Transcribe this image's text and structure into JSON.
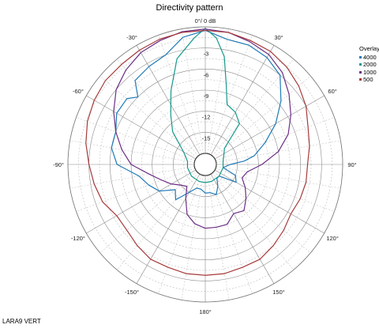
{
  "chart_data": {
    "type": "polar-line",
    "title": "Directivity pattern",
    "top_label": "0°/ 0 dB",
    "angle_ticks": [
      {
        "deg": -30,
        "label": "-30°"
      },
      {
        "deg": 30,
        "label": "30°"
      },
      {
        "deg": -60,
        "label": "-60°"
      },
      {
        "deg": 60,
        "label": "60°"
      },
      {
        "deg": -90,
        "label": "-90°"
      },
      {
        "deg": 90,
        "label": "90°"
      },
      {
        "deg": -120,
        "label": "-120°"
      },
      {
        "deg": 120,
        "label": "120°"
      },
      {
        "deg": -150,
        "label": "-150°"
      },
      {
        "deg": 150,
        "label": "150°"
      },
      {
        "deg": 180,
        "label": "180°"
      }
    ],
    "radial_labels": [
      "-3",
      "-6",
      "-9",
      "-12",
      "-15"
    ],
    "radial_range_db": [
      -18,
      0
    ],
    "grid": true,
    "legend": {
      "title": "Overlay",
      "position": "right",
      "items": [
        {
          "name": "4000",
          "color": "#1f7ab8"
        },
        {
          "name": "2000",
          "color": "#17998c"
        },
        {
          "name": "1000",
          "color": "#6b2f86"
        },
        {
          "name": "500",
          "color": "#a63a3a"
        }
      ]
    },
    "series": [
      {
        "name": "4000",
        "color": "#1f7ab8",
        "points": [
          [
            0,
            -0.5
          ],
          [
            10,
            -1.5
          ],
          [
            20,
            -1.5
          ],
          [
            30,
            -2
          ],
          [
            40,
            -3
          ],
          [
            50,
            -5.5
          ],
          [
            60,
            -8
          ],
          [
            70,
            -10.5
          ],
          [
            80,
            -12.5
          ],
          [
            85,
            -14
          ],
          [
            90,
            -16
          ],
          [
            100,
            -17
          ],
          [
            110,
            -15
          ],
          [
            120,
            -14.5
          ],
          [
            130,
            -17
          ],
          [
            140,
            -17
          ],
          [
            150,
            -16
          ],
          [
            160,
            -15
          ],
          [
            170,
            -15.5
          ],
          [
            180,
            -15.5
          ],
          [
            -170,
            -16
          ],
          [
            -160,
            -16
          ],
          [
            -150,
            -15
          ],
          [
            -140,
            -13
          ],
          [
            -130,
            -14
          ],
          [
            -120,
            -12
          ],
          [
            -110,
            -11
          ],
          [
            -100,
            -10
          ],
          [
            -90,
            -7
          ],
          [
            -80,
            -6
          ],
          [
            -70,
            -6
          ],
          [
            -60,
            -5
          ],
          [
            -50,
            -5
          ],
          [
            -45,
            -6
          ],
          [
            -40,
            -4
          ],
          [
            -30,
            -3.5
          ],
          [
            -20,
            -3
          ],
          [
            -10,
            -1.2
          ]
        ]
      },
      {
        "name": "2000",
        "color": "#17998c",
        "points": [
          [
            0,
            -0.2
          ],
          [
            5,
            -1.5
          ],
          [
            10,
            -4
          ],
          [
            15,
            -8
          ],
          [
            20,
            -10.5
          ],
          [
            30,
            -11
          ],
          [
            40,
            -12
          ],
          [
            50,
            -16
          ],
          [
            60,
            -16.5
          ],
          [
            80,
            -17
          ],
          [
            100,
            -17
          ],
          [
            130,
            -17
          ],
          [
            160,
            -17
          ],
          [
            180,
            -17
          ],
          [
            -160,
            -17
          ],
          [
            -130,
            -17
          ],
          [
            -100,
            -17
          ],
          [
            -80,
            -17
          ],
          [
            -60,
            -16
          ],
          [
            -45,
            -13
          ],
          [
            -35,
            -11
          ],
          [
            -25,
            -8
          ],
          [
            -15,
            -4
          ],
          [
            -5,
            -1.5
          ]
        ]
      },
      {
        "name": "1000",
        "color": "#6b2f86",
        "points": [
          [
            0,
            -0.3
          ],
          [
            10,
            -0.5
          ],
          [
            20,
            -1
          ],
          [
            30,
            -1.5
          ],
          [
            40,
            -2.5
          ],
          [
            50,
            -4
          ],
          [
            60,
            -5.5
          ],
          [
            70,
            -7
          ],
          [
            80,
            -9
          ],
          [
            90,
            -11.5
          ],
          [
            100,
            -13.5
          ],
          [
            110,
            -14
          ],
          [
            120,
            -13
          ],
          [
            130,
            -12
          ],
          [
            140,
            -11
          ],
          [
            150,
            -11.5
          ],
          [
            160,
            -10.5
          ],
          [
            170,
            -10.5
          ],
          [
            180,
            -10.5
          ],
          [
            -170,
            -11
          ],
          [
            -160,
            -12
          ],
          [
            -150,
            -14
          ],
          [
            -140,
            -15.5
          ],
          [
            -130,
            -15
          ],
          [
            -120,
            -14
          ],
          [
            -110,
            -13
          ],
          [
            -100,
            -11.5
          ],
          [
            -90,
            -9
          ],
          [
            -80,
            -7.5
          ],
          [
            -70,
            -6
          ],
          [
            -60,
            -4.5
          ],
          [
            -50,
            -3
          ],
          [
            -40,
            -2
          ],
          [
            -30,
            -1.2
          ],
          [
            -20,
            -0.8
          ],
          [
            -10,
            -0.4
          ]
        ]
      },
      {
        "name": "500",
        "color": "#a63a3a",
        "points": [
          [
            0,
            -0.5
          ],
          [
            10,
            -0.5
          ],
          [
            20,
            -0.8
          ],
          [
            30,
            -1
          ],
          [
            40,
            -1.5
          ],
          [
            50,
            -2.2
          ],
          [
            60,
            -3
          ],
          [
            70,
            -4
          ],
          [
            80,
            -4.5
          ],
          [
            90,
            -5
          ],
          [
            100,
            -5
          ],
          [
            110,
            -5.2
          ],
          [
            120,
            -5.5
          ],
          [
            130,
            -5
          ],
          [
            140,
            -4.5
          ],
          [
            150,
            -4
          ],
          [
            160,
            -4
          ],
          [
            170,
            -3.8
          ],
          [
            180,
            -3.8
          ],
          [
            -170,
            -3.8
          ],
          [
            -160,
            -4
          ],
          [
            -150,
            -4
          ],
          [
            -140,
            -4.5
          ],
          [
            -130,
            -5
          ],
          [
            -120,
            -5
          ],
          [
            -110,
            -4
          ],
          [
            -100,
            -3.5
          ],
          [
            -90,
            -3
          ],
          [
            -80,
            -2.3
          ],
          [
            -70,
            -1.7
          ],
          [
            -60,
            -1.3
          ],
          [
            -50,
            -1
          ],
          [
            -40,
            -1
          ],
          [
            -30,
            -0.8
          ],
          [
            -20,
            -0.6
          ],
          [
            -10,
            -0.5
          ]
        ]
      }
    ]
  },
  "footer_label": "LARA9 VERT"
}
